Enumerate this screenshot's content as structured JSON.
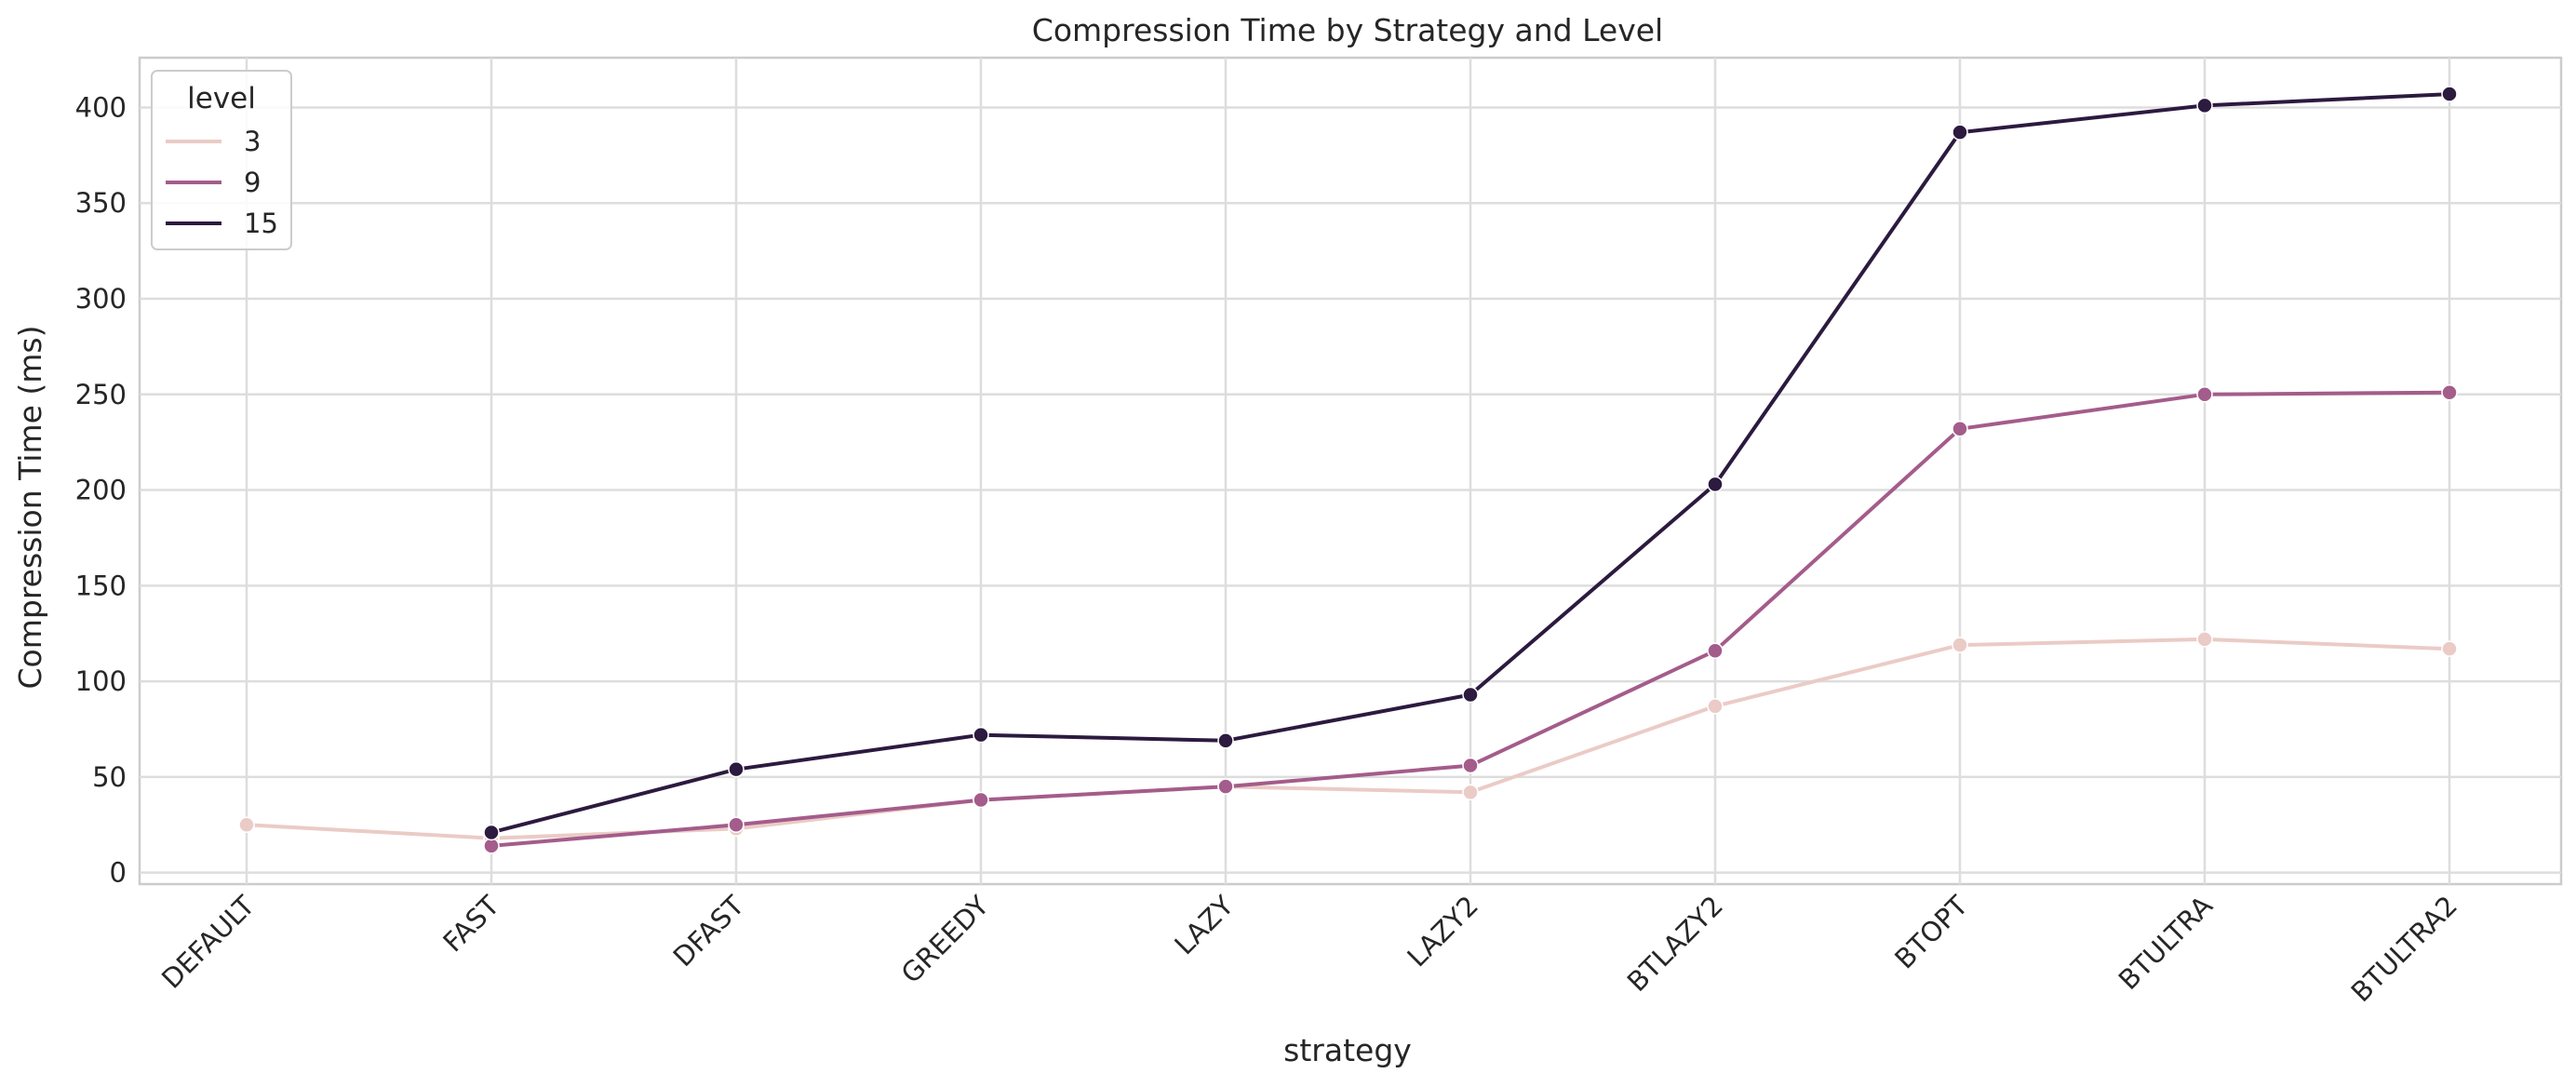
{
  "chart_data": {
    "type": "line",
    "title": "Compression Time by Strategy and Level",
    "xlabel": "strategy",
    "ylabel": "Compression Time (ms)",
    "categories": [
      "DEFAULT",
      "FAST",
      "DFAST",
      "GREEDY",
      "LAZY",
      "LAZY2",
      "BTLAZY2",
      "BTOPT",
      "BTULTRA",
      "BTULTRA2"
    ],
    "ylim": [
      -6,
      426
    ],
    "yticks": [
      0,
      50,
      100,
      150,
      200,
      250,
      300,
      350,
      400
    ],
    "grid": true,
    "legend": {
      "title": "level",
      "placement": "top-left"
    },
    "series": [
      {
        "name": "3",
        "color": "#ebcbc6",
        "values": [
          25,
          18,
          23,
          38,
          45,
          42,
          87,
          119,
          122,
          117
        ]
      },
      {
        "name": "9",
        "color": "#a45c8b",
        "values": [
          null,
          14,
          25,
          38,
          45,
          56,
          116,
          232,
          250,
          251
        ]
      },
      {
        "name": "15",
        "color": "#2c1a3f",
        "values": [
          null,
          21,
          54,
          72,
          69,
          93,
          203,
          387,
          401,
          407
        ]
      }
    ]
  }
}
